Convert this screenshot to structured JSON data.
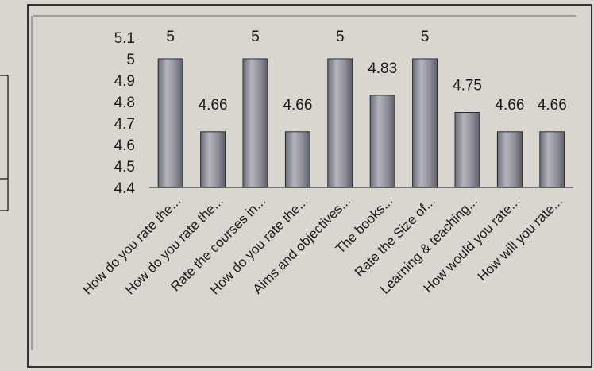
{
  "chart_data": {
    "type": "bar",
    "title": "",
    "xlabel": "",
    "ylabel": "",
    "categories": [
      "How do you rate the...",
      "How do you rate the...",
      "Rate the courses in...",
      "How do you rate the...",
      "Aims and objectives...",
      "The books...",
      "Rate the Size of...",
      "Learning & teaching...",
      "How would you rate...",
      "How will you rate..."
    ],
    "values": [
      5,
      4.66,
      5,
      4.66,
      5,
      4.83,
      5,
      4.75,
      4.66,
      4.66
    ],
    "data_labels": [
      "5",
      "4.66",
      "5",
      "4.66",
      "5",
      "4.83",
      "5",
      "4.75",
      "4.66",
      "4.66"
    ],
    "ylim": [
      4.4,
      5.1
    ],
    "yticks": [
      "4.4",
      "4.5",
      "4.6",
      "4.7",
      "4.8",
      "4.9",
      "5",
      "5.1"
    ],
    "grid": false,
    "legend": "none",
    "colors": {
      "bar_fill": "#8e8e9a",
      "bar_highlight": "#b4b4be",
      "bar_edge": "#2a2a2a",
      "axis": "#555555",
      "background": "#d9d6d0"
    }
  }
}
